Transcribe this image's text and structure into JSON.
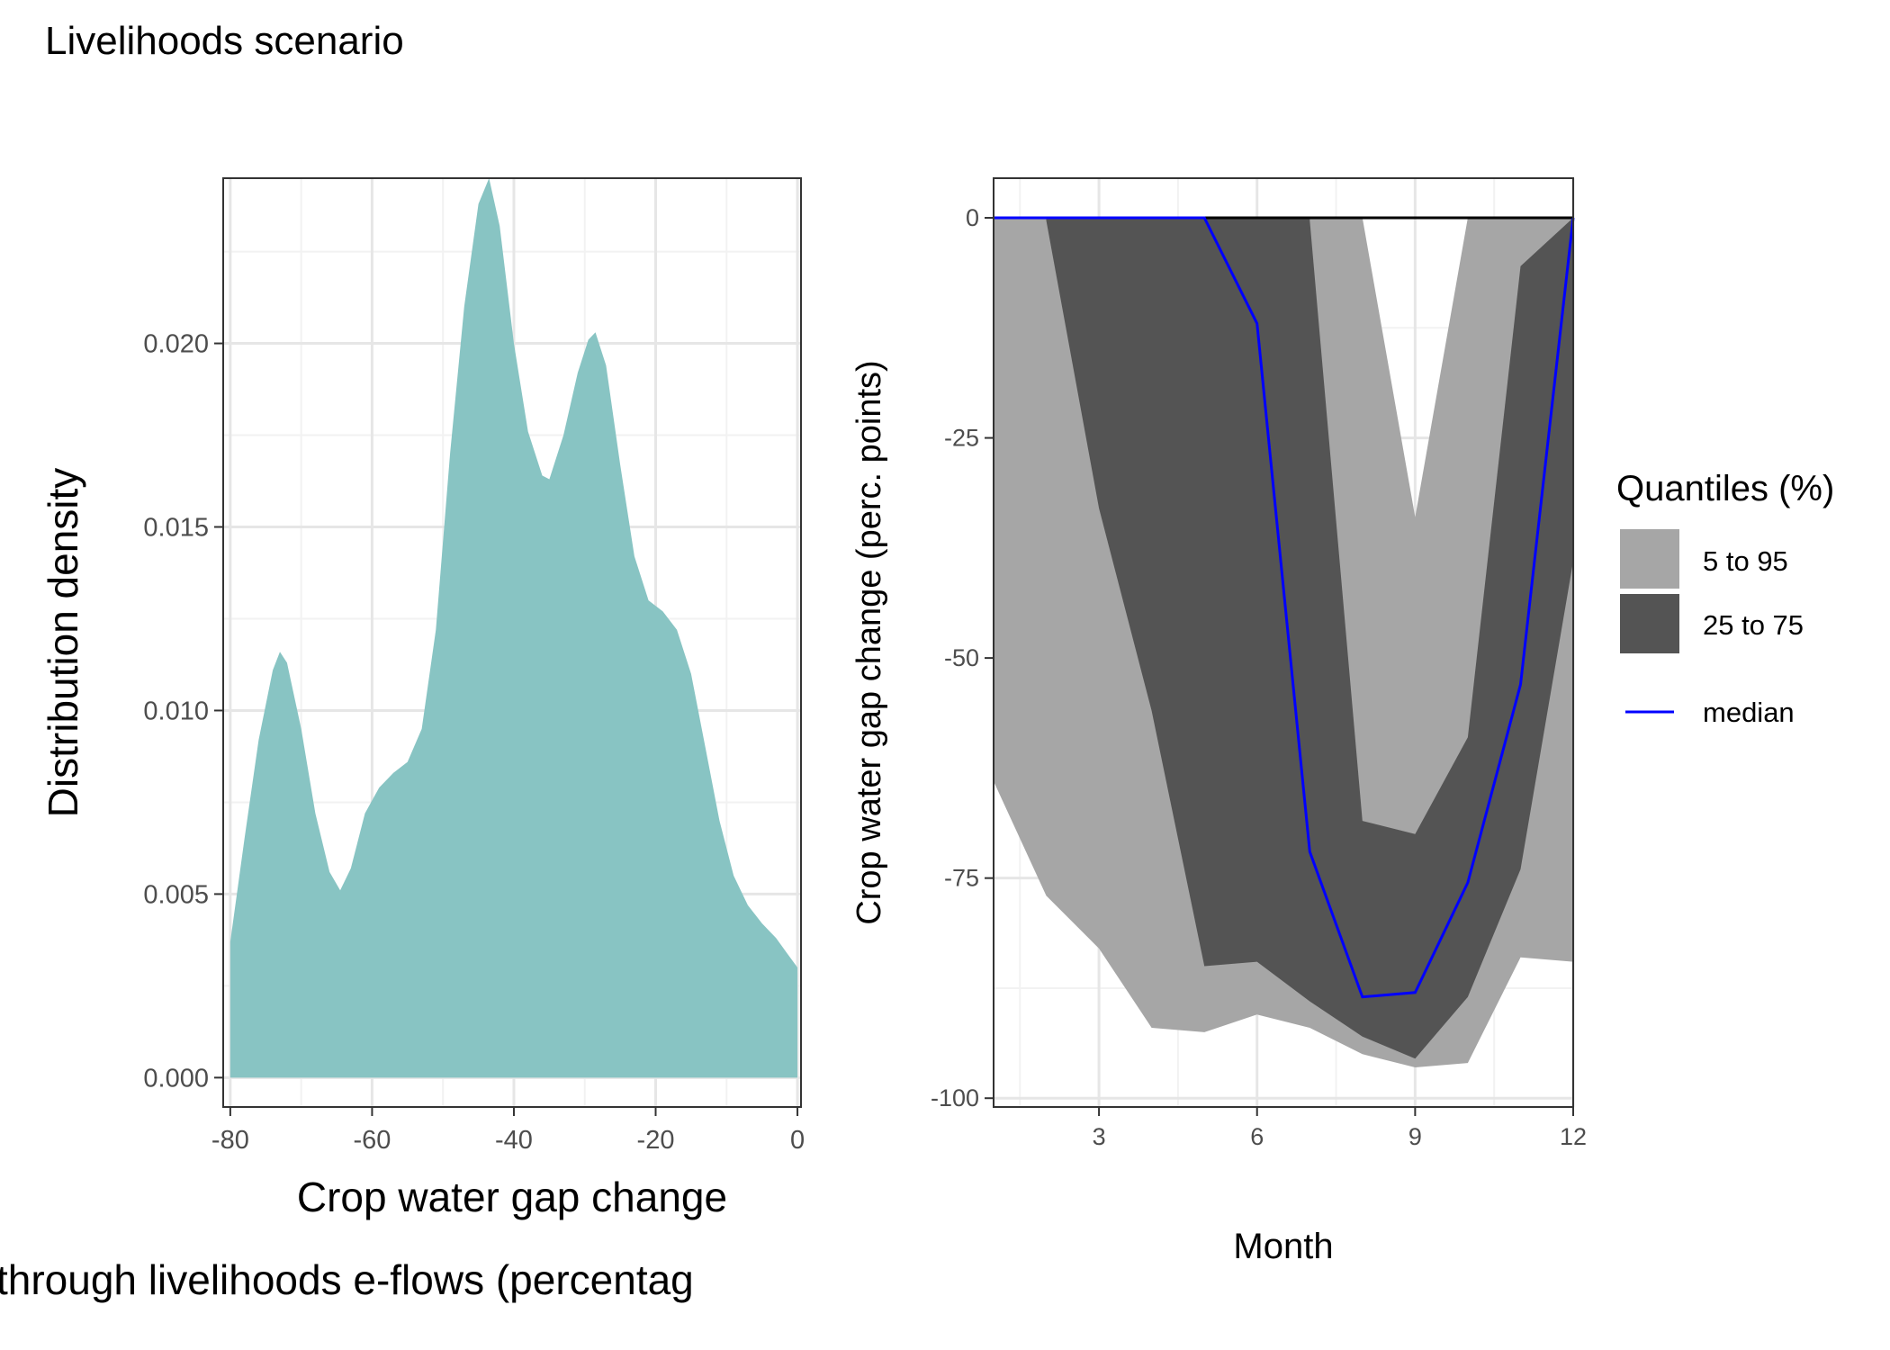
{
  "title": "Livelihoods scenario",
  "chart_data": [
    {
      "type": "area",
      "subtype": "density",
      "xlabel": "Crop water gap change",
      "xlabel_line2": "through livelihoods e-flows (percentag",
      "ylabel": "Distribution density",
      "xlim": [
        -81,
        0.5
      ],
      "ylim": [
        -0.0008,
        0.0245
      ],
      "xticks": [
        -80,
        -60,
        -40,
        -20,
        0
      ],
      "xtick_labels": [
        "-80",
        "-60",
        "-40",
        "-20",
        "0"
      ],
      "yticks": [
        0,
        0.005,
        0.01,
        0.015,
        0.02
      ],
      "ytick_labels": [
        "0.000",
        "0.005",
        "0.010",
        "0.015",
        "0.020"
      ],
      "fill_color": "#88c4c3",
      "grid": true,
      "points": [
        [
          -80,
          0.0037
        ],
        [
          -78,
          0.0065
        ],
        [
          -76,
          0.0092
        ],
        [
          -74,
          0.0111
        ],
        [
          -73,
          0.0116
        ],
        [
          -72,
          0.0113
        ],
        [
          -70,
          0.0095
        ],
        [
          -68,
          0.0072
        ],
        [
          -66,
          0.0056
        ],
        [
          -64.5,
          0.0051
        ],
        [
          -63,
          0.0057
        ],
        [
          -61,
          0.0072
        ],
        [
          -59,
          0.0079
        ],
        [
          -57,
          0.0083
        ],
        [
          -55,
          0.0086
        ],
        [
          -53,
          0.0095
        ],
        [
          -51,
          0.0122
        ],
        [
          -49,
          0.017
        ],
        [
          -47,
          0.021
        ],
        [
          -45,
          0.0238
        ],
        [
          -43.5,
          0.0245
        ],
        [
          -42,
          0.0232
        ],
        [
          -40,
          0.02
        ],
        [
          -38,
          0.0176
        ],
        [
          -36,
          0.0164
        ],
        [
          -35,
          0.0163
        ],
        [
          -33,
          0.0175
        ],
        [
          -31,
          0.0192
        ],
        [
          -29.5,
          0.0201
        ],
        [
          -28.5,
          0.0203
        ],
        [
          -27,
          0.0194
        ],
        [
          -25,
          0.0167
        ],
        [
          -23,
          0.0142
        ],
        [
          -21,
          0.013
        ],
        [
          -19,
          0.0127
        ],
        [
          -17,
          0.0122
        ],
        [
          -15,
          0.011
        ],
        [
          -13,
          0.009
        ],
        [
          -11,
          0.007
        ],
        [
          -9,
          0.0055
        ],
        [
          -7,
          0.0047
        ],
        [
          -5,
          0.0042
        ],
        [
          -3,
          0.0038
        ],
        [
          -1.5,
          0.0034
        ],
        [
          0,
          0.003
        ]
      ]
    },
    {
      "type": "area",
      "subtype": "quantile-ribbons",
      "xlabel": "Month",
      "ylabel": "Crop water gap change (perc. points)",
      "xlim": [
        1,
        12
      ],
      "ylim": [
        -101,
        4.5
      ],
      "xticks": [
        3,
        6,
        9,
        12
      ],
      "xtick_labels": [
        "3",
        "6",
        "9",
        "12"
      ],
      "yticks": [
        0,
        -25,
        -50,
        -75,
        -100
      ],
      "ytick_labels": [
        "0",
        "-25",
        "-50",
        "-75",
        "-100"
      ],
      "months": [
        1,
        2,
        3,
        4,
        5,
        6,
        7,
        8,
        9,
        10,
        11,
        12
      ],
      "grid": true,
      "reference_line_y": 0,
      "legend": {
        "title": "Quantiles (%)",
        "position": "right",
        "entries": [
          {
            "label": "5 to 95",
            "color": "#a6a6a6",
            "kind": "fill"
          },
          {
            "label": "25 to 75",
            "color": "#545454",
            "kind": "fill"
          },
          {
            "label": "median",
            "color": "#0000ff",
            "kind": "line"
          }
        ]
      },
      "series": [
        {
          "name": "5 to 95",
          "color": "#a6a6a6",
          "lower": [
            -64,
            -77,
            -83,
            -92,
            -92.5,
            -90.5,
            -92,
            -95,
            -96.5,
            -96,
            -84,
            -84.5
          ],
          "upper_points": [
            [
              1,
              0
            ],
            [
              7,
              0
            ],
            [
              8,
              0
            ],
            [
              9,
              -34
            ],
            [
              10,
              0
            ],
            [
              11,
              0
            ],
            [
              12,
              0
            ]
          ]
        },
        {
          "name": "25 to 75",
          "color": "#545454",
          "lower": [
            -0.3,
            -0.3,
            -33,
            -56,
            -85,
            -84.5,
            -89,
            -93,
            -95.5,
            -88.5,
            -74,
            -39
          ],
          "upper_points": [
            [
              2,
              0
            ],
            [
              7,
              0
            ],
            [
              7,
              -0.3
            ],
            [
              8,
              -68.5
            ],
            [
              9,
              -70
            ],
            [
              10,
              -59
            ],
            [
              11,
              -5.5
            ],
            [
              12,
              0
            ]
          ]
        },
        {
          "name": "median",
          "color": "#0000ff",
          "values": [
            0,
            0,
            0,
            0,
            0,
            -12,
            -72,
            -88.5,
            -88,
            -75.5,
            -53,
            0
          ]
        }
      ]
    }
  ]
}
